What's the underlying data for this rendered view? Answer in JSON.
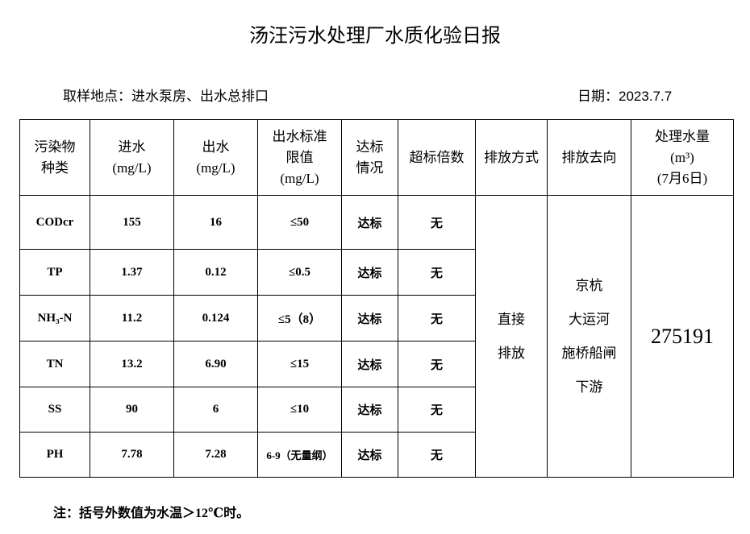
{
  "title": "汤汪污水处理厂水质化验日报",
  "sampling_location": "取样地点：进水泵房、出水总排口",
  "date": "日期：2023.7.7",
  "headers": [
    "污染物\n种类",
    "进水\n(mg/L)",
    "出水\n(mg/L)",
    "出水标准\n限值\n(mg/L)",
    "达标\n情况",
    "超标倍数",
    "排放方式",
    "排放去向",
    "处理水量\n(m³)\n(7月6日)"
  ],
  "rows": [
    {
      "pollutant": "CODcr",
      "inflow": "155",
      "outflow": "16",
      "limit": "≤50",
      "status": "达标",
      "exceed": "无"
    },
    {
      "pollutant": "TP",
      "inflow": "1.37",
      "outflow": "0.12",
      "limit": "≤0.5",
      "status": "达标",
      "exceed": "无"
    },
    {
      "pollutant": "NH₃-N",
      "inflow": "11.2",
      "outflow": "0.124",
      "limit": "≤5（8）",
      "status": "达标",
      "exceed": "无"
    },
    {
      "pollutant": "TN",
      "inflow": "13.2",
      "outflow": "6.90",
      "limit": "≤15",
      "status": "达标",
      "exceed": "无"
    },
    {
      "pollutant": "SS",
      "inflow": "90",
      "outflow": "6",
      "limit": "≤10",
      "status": "达标",
      "exceed": "无"
    },
    {
      "pollutant": "PH",
      "inflow": "7.78",
      "outflow": "7.28",
      "limit": "6-9（无量纲）",
      "status": "达标",
      "exceed": "无"
    }
  ],
  "discharge_method": "直接\n排放",
  "discharge_destination": "京杭\n大运河\n施桥船闸\n下游",
  "treated_volume": "275191",
  "note": "注：括号外数值为水温＞12℃时。"
}
